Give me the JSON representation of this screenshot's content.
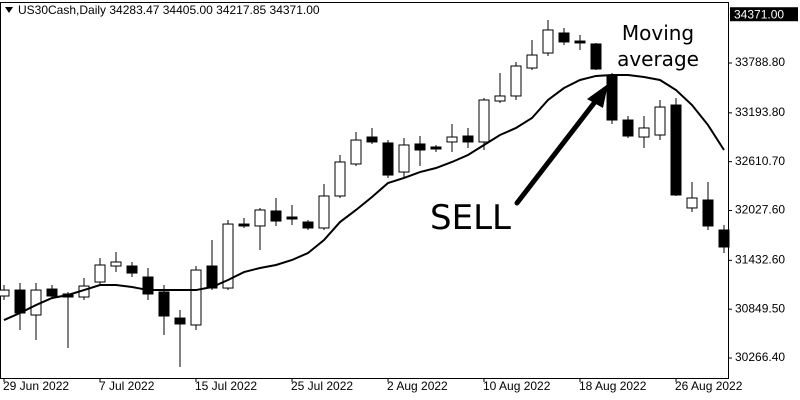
{
  "chart_data": {
    "type": "candlestick",
    "title": "US30Cash,Daily  34283.47 34405.00 34217.85 34371.00",
    "categories": [
      "29 Jun 2022",
      null,
      null,
      null,
      null,
      null,
      "7 Jul 2022",
      null,
      null,
      null,
      null,
      null,
      "15 Jul 2022",
      null,
      null,
      null,
      null,
      null,
      "25 Jul 2022",
      null,
      null,
      null,
      null,
      null,
      "2 Aug 2022",
      null,
      null,
      null,
      null,
      null,
      "10 Aug 2022",
      null,
      null,
      null,
      null,
      null,
      "18 Aug 2022",
      null,
      null,
      null,
      null,
      null,
      "26 Aug 2022",
      null,
      null,
      null
    ],
    "open": [
      31007,
      31078,
      30780,
      31090,
      31031,
      30995,
      31174,
      31365,
      31365,
      31234,
      31055,
      30744,
      30661,
      31365,
      31102,
      31866,
      31843,
      32022,
      31950,
      31890,
      31819,
      32201,
      32583,
      32905,
      32834,
      32487,
      32822,
      32786,
      32846,
      32917,
      32846,
      33335,
      33395,
      33729,
      33908,
      34147,
      34051,
      34016,
      33646,
      33108,
      32905,
      32929,
      33287,
      32058,
      32153,
      31795
    ],
    "high": [
      31138,
      31162,
      31162,
      31138,
      31055,
      31222,
      31460,
      31532,
      31413,
      31341,
      31138,
      30840,
      31365,
      31675,
      31914,
      31938,
      32058,
      32177,
      32093,
      31914,
      32344,
      32690,
      32965,
      33013,
      32869,
      32893,
      32917,
      32810,
      33060,
      33013,
      33371,
      33669,
      33801,
      34063,
      34302,
      34207,
      34123,
      34028,
      33669,
      33156,
      33156,
      33347,
      33371,
      32368,
      32368,
      31855
    ],
    "low": [
      30959,
      30601,
      30481,
      30983,
      30386,
      30959,
      31138,
      31293,
      31234,
      30959,
      30541,
      30159,
      30601,
      31078,
      31078,
      31819,
      31556,
      31843,
      31855,
      31795,
      31795,
      32177,
      32559,
      32822,
      32416,
      32416,
      32559,
      32726,
      32726,
      32774,
      32750,
      33311,
      33347,
      33705,
      33872,
      34004,
      33944,
      33705,
      33060,
      32893,
      32774,
      32869,
      32201,
      32010,
      31795,
      31520
    ],
    "close": [
      31078,
      30804,
      31078,
      31007,
      30995,
      31126,
      31377,
      31413,
      31281,
      31031,
      30768,
      30673,
      31317,
      31102,
      31866,
      31843,
      32034,
      31902,
      31926,
      31819,
      32201,
      32607,
      32869,
      32846,
      32451,
      32810,
      32750,
      32762,
      32905,
      32846,
      33347,
      33395,
      33753,
      33884,
      34183,
      34040,
      34028,
      33717,
      33108,
      32917,
      33013,
      33263,
      32213,
      32177,
      31843,
      31592
    ],
    "up_color": "#ffffff",
    "down_color": "#000000",
    "moving_average": {
      "color": "#000000",
      "values": [
        30720,
        30804,
        30899,
        30983,
        31019,
        31078,
        31138,
        31138,
        31114,
        31078,
        31078,
        31078,
        31078,
        31114,
        31198,
        31293,
        31341,
        31377,
        31437,
        31520,
        31675,
        31890,
        32034,
        32189,
        32356,
        32416,
        32487,
        32535,
        32607,
        32690,
        32810,
        32929,
        33013,
        33132,
        33347,
        33490,
        33586,
        33634,
        33646,
        33646,
        33622,
        33586,
        33466,
        33287,
        33048,
        32750
      ]
    },
    "ylim": [
      30028,
      34517
    ],
    "yticks": [
      {
        "value": 30266.4,
        "label": "30266.40"
      },
      {
        "value": 30849.5,
        "label": "30849.50"
      },
      {
        "value": 31432.6,
        "label": "31432.60"
      },
      {
        "value": 32027.6,
        "label": "32027.60"
      },
      {
        "value": 32610.7,
        "label": "32610.70"
      },
      {
        "value": 33193.8,
        "label": "33193.80"
      },
      {
        "value": 33788.8,
        "label": "33788.80"
      }
    ],
    "current_price": {
      "value": 34371,
      "label": "34371.00"
    },
    "annotations": [
      {
        "text": "SELL"
      },
      {
        "text": "Moving average"
      }
    ],
    "grid": false
  }
}
